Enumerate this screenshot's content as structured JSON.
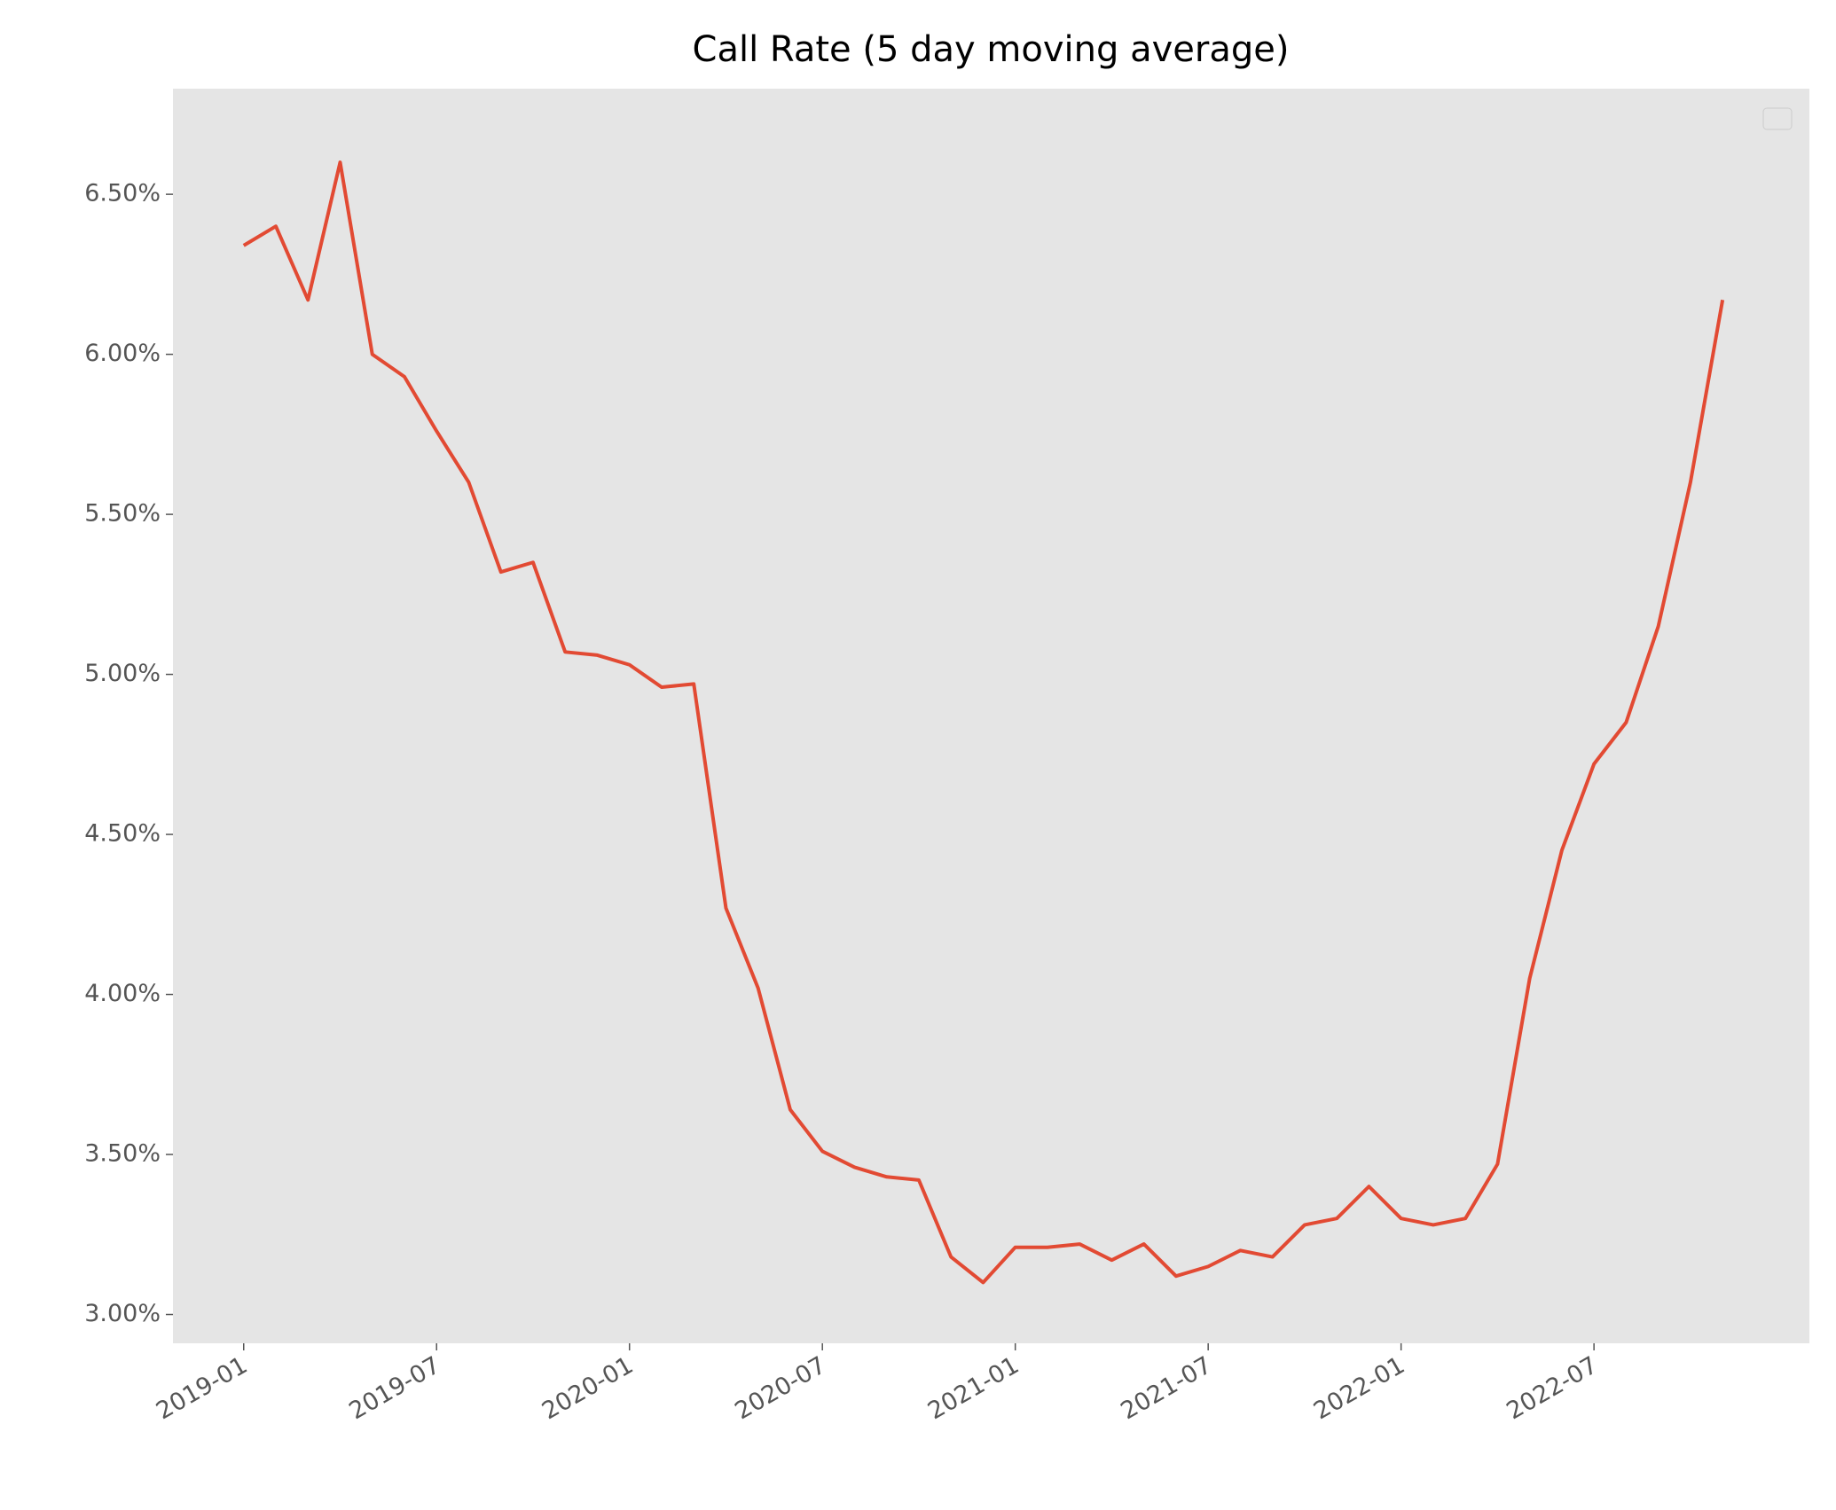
{
  "chart_data": {
    "type": "line",
    "title": "Call Rate (5 day moving average)",
    "x": [
      "2019-01",
      "2019-02",
      "2019-03",
      "2019-04",
      "2019-05",
      "2019-06",
      "2019-07",
      "2019-08",
      "2019-09",
      "2019-10",
      "2019-11",
      "2019-12",
      "2020-01",
      "2020-02",
      "2020-03",
      "2020-04",
      "2020-05",
      "2020-06",
      "2020-07",
      "2020-08",
      "2020-09",
      "2020-10",
      "2020-11",
      "2020-12",
      "2021-01",
      "2021-02",
      "2021-03",
      "2021-04",
      "2021-05",
      "2021-06",
      "2021-07",
      "2021-08",
      "2021-09",
      "2021-10",
      "2021-11",
      "2021-12",
      "2022-01",
      "2022-02",
      "2022-03",
      "2022-04",
      "2022-05",
      "2022-06",
      "2022-07",
      "2022-08",
      "2022-09",
      "2022-10",
      "2022-11"
    ],
    "series": [
      {
        "color": "#e24a33",
        "values": [
          6.34,
          6.4,
          6.17,
          6.6,
          6.0,
          5.93,
          5.76,
          5.6,
          5.32,
          5.35,
          5.07,
          5.06,
          5.03,
          4.96,
          4.97,
          4.27,
          4.02,
          3.64,
          3.51,
          3.46,
          3.43,
          3.42,
          3.18,
          3.1,
          3.21,
          3.21,
          3.22,
          3.17,
          3.22,
          3.12,
          3.15,
          3.2,
          3.18,
          3.28,
          3.3,
          3.4,
          3.3,
          3.28,
          3.3,
          3.47,
          4.05,
          4.45,
          4.72,
          4.85,
          5.15,
          5.6,
          6.17
        ]
      }
    ],
    "ylim": [
      2.91,
      6.83
    ],
    "yticks": [
      {
        "value": 3.0,
        "label": "3.00%"
      },
      {
        "value": 3.5,
        "label": "3.50%"
      },
      {
        "value": 4.0,
        "label": "4.00%"
      },
      {
        "value": 4.5,
        "label": "4.50%"
      },
      {
        "value": 5.0,
        "label": "5.00%"
      },
      {
        "value": 5.5,
        "label": "5.50%"
      },
      {
        "value": 6.0,
        "label": "6.00%"
      },
      {
        "value": 6.5,
        "label": "6.50%"
      }
    ],
    "xticks": [
      "2019-01",
      "2019-07",
      "2020-01",
      "2020-07",
      "2021-01",
      "2021-07",
      "2022-01",
      "2022-07"
    ],
    "grid": false
  }
}
